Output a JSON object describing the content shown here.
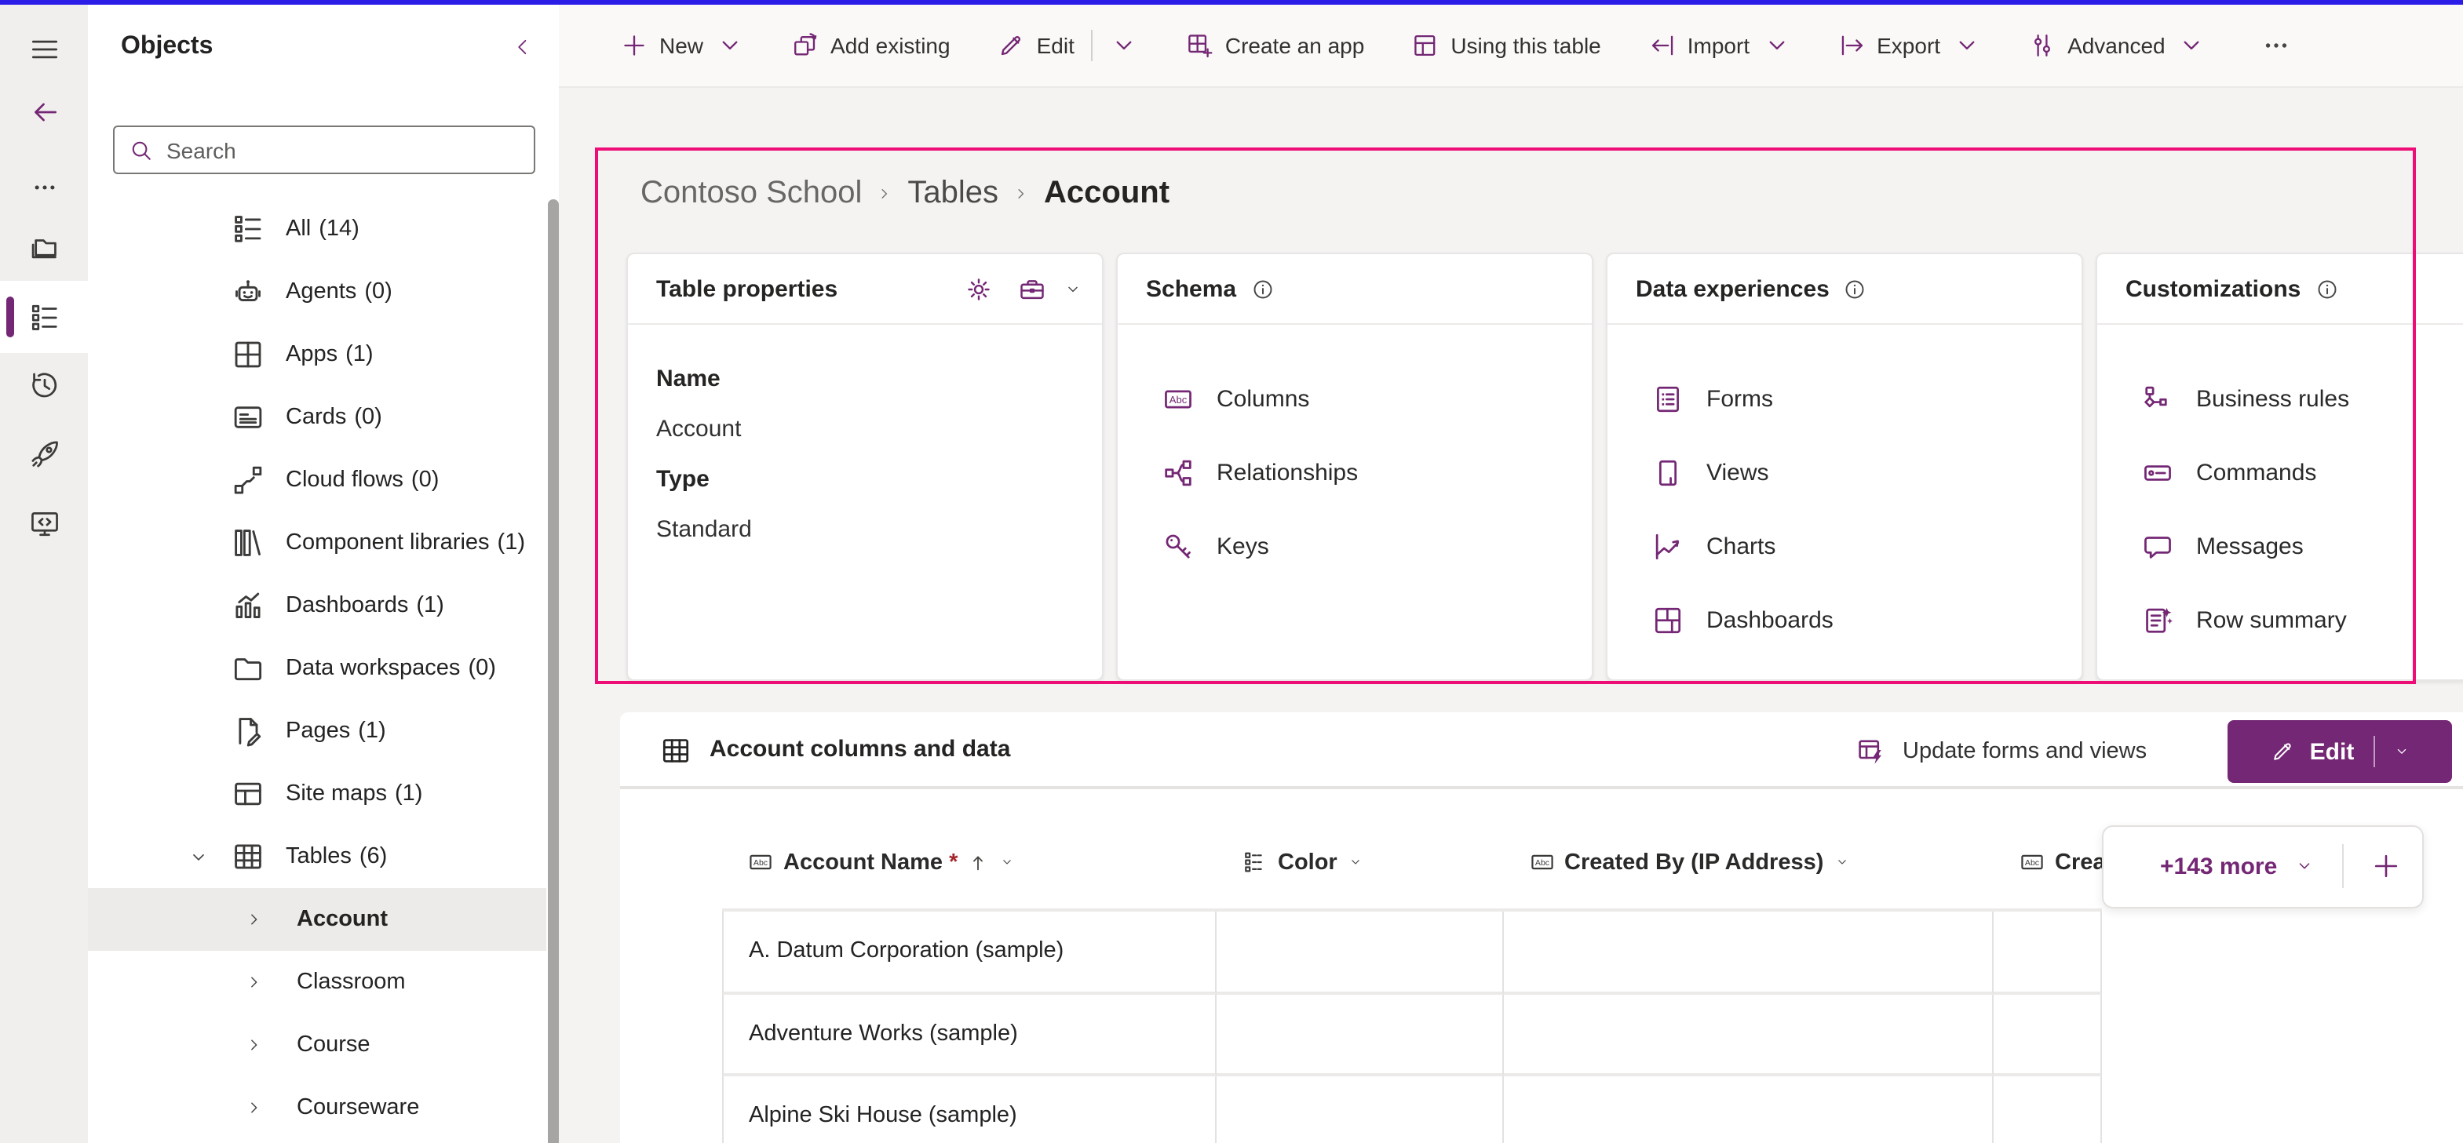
{
  "colors": {
    "accent": "#742774",
    "highlight_border": "#ee0c77",
    "top_strip": "#2b1ce8",
    "selected_bg": "#edebe9",
    "required": "#a4262c"
  },
  "left_rail": {
    "items": [
      {
        "name": "menu",
        "icon": "hamburger-icon"
      },
      {
        "name": "back",
        "icon": "arrow-left-icon"
      },
      {
        "name": "more",
        "icon": "ellipsis-icon"
      },
      {
        "name": "solutions",
        "icon": "folder-stack-icon"
      },
      {
        "name": "objects",
        "icon": "tree-list-icon",
        "selected": true
      },
      {
        "name": "history",
        "icon": "history-icon"
      },
      {
        "name": "launch",
        "icon": "rocket-icon"
      },
      {
        "name": "code",
        "icon": "monitor-code-icon"
      }
    ]
  },
  "objects_panel": {
    "title": "Objects",
    "collapse_icon": "chevron-left-icon",
    "search_icon": "search-icon",
    "search_placeholder": "Search",
    "items": [
      {
        "label": "All",
        "count": "(14)",
        "icon": "list-icon"
      },
      {
        "label": "Agents",
        "count": "(0)",
        "icon": "robot-icon"
      },
      {
        "label": "Apps",
        "count": "(1)",
        "icon": "apps-icon"
      },
      {
        "label": "Cards",
        "count": "(0)",
        "icon": "card-icon"
      },
      {
        "label": "Cloud flows",
        "count": "(0)",
        "icon": "flow-icon"
      },
      {
        "label": "Component libraries",
        "count": "(1)",
        "icon": "library-icon"
      },
      {
        "label": "Dashboards",
        "count": "(1)",
        "icon": "bar-chart-icon"
      },
      {
        "label": "Data workspaces",
        "count": "(0)",
        "icon": "folder-icon"
      },
      {
        "label": "Pages",
        "count": "(1)",
        "icon": "page-edit-icon"
      },
      {
        "label": "Site maps",
        "count": "(1)",
        "icon": "sitemap-icon"
      },
      {
        "label": "Tables",
        "count": "(6)",
        "icon": "table-icon",
        "expanded": true
      }
    ],
    "tables_children": [
      {
        "label": "Account",
        "selected": true
      },
      {
        "label": "Classroom"
      },
      {
        "label": "Course"
      },
      {
        "label": "Courseware"
      }
    ]
  },
  "toolbar": {
    "items": [
      {
        "label": "New",
        "icon": "plus-icon"
      },
      {
        "label": "Add existing",
        "icon": "add-existing-icon"
      },
      {
        "label": "Edit",
        "icon": "pencil-icon"
      },
      {
        "label": "Create an app",
        "icon": "create-app-icon"
      },
      {
        "label": "Using this table",
        "icon": "using-table-icon"
      },
      {
        "label": "Import",
        "icon": "import-icon"
      },
      {
        "label": "Export",
        "icon": "export-icon"
      },
      {
        "label": "Advanced",
        "icon": "advanced-icon"
      }
    ],
    "overflow_icon": "more-horizontal-icon"
  },
  "breadcrumb": {
    "items": [
      "Contoso School",
      "Tables",
      "Account"
    ]
  },
  "cards": {
    "table_properties": {
      "title": "Table properties",
      "header_icons": [
        "gear-icon",
        "briefcase-icon",
        "chevron-down-icon"
      ],
      "fields": [
        {
          "label": "Name",
          "value": "Account"
        },
        {
          "label": "Type",
          "value": "Standard"
        }
      ]
    },
    "schema": {
      "title": "Schema",
      "info_icon": "info-icon",
      "links": [
        {
          "label": "Columns",
          "icon": "abc-icon"
        },
        {
          "label": "Relationships",
          "icon": "relationship-icon"
        },
        {
          "label": "Keys",
          "icon": "key-icon"
        }
      ]
    },
    "data_experiences": {
      "title": "Data experiences",
      "info_icon": "info-icon",
      "links": [
        {
          "label": "Forms",
          "icon": "form-icon"
        },
        {
          "label": "Views",
          "icon": "view-icon"
        },
        {
          "label": "Charts",
          "icon": "line-chart-icon"
        },
        {
          "label": "Dashboards",
          "icon": "dashboard-icon"
        }
      ]
    },
    "customizations": {
      "title": "Customizations",
      "info_icon": "info-icon",
      "links": [
        {
          "label": "Business rules",
          "icon": "flowchart-icon"
        },
        {
          "label": "Commands",
          "icon": "command-bar-icon"
        },
        {
          "label": "Messages",
          "icon": "message-icon"
        },
        {
          "label": "Row summary",
          "icon": "row-summary-icon"
        }
      ]
    }
  },
  "data_section": {
    "title": "Account columns and data",
    "title_icon": "table-icon",
    "update_forms_views_label": "Update forms and views",
    "update_forms_views_icon": "update-forms-icon",
    "edit_button_label": "Edit",
    "more_columns_label": "+143 more",
    "add_column_icon": "plus-icon",
    "columns": [
      {
        "label": "Account Name",
        "icon": "abc-icon",
        "required_marker": "*",
        "sorted_asc": true
      },
      {
        "label": "Color",
        "icon": "options-icon"
      },
      {
        "label": "Created By (IP Address)",
        "icon": "abc-icon"
      },
      {
        "label": "Crea",
        "icon": "abc-icon",
        "truncated": true
      }
    ],
    "rows": [
      {
        "account_name": "A. Datum Corporation (sample)"
      },
      {
        "account_name": "Adventure Works (sample)"
      },
      {
        "account_name": "Alpine Ski House (sample)"
      }
    ]
  }
}
